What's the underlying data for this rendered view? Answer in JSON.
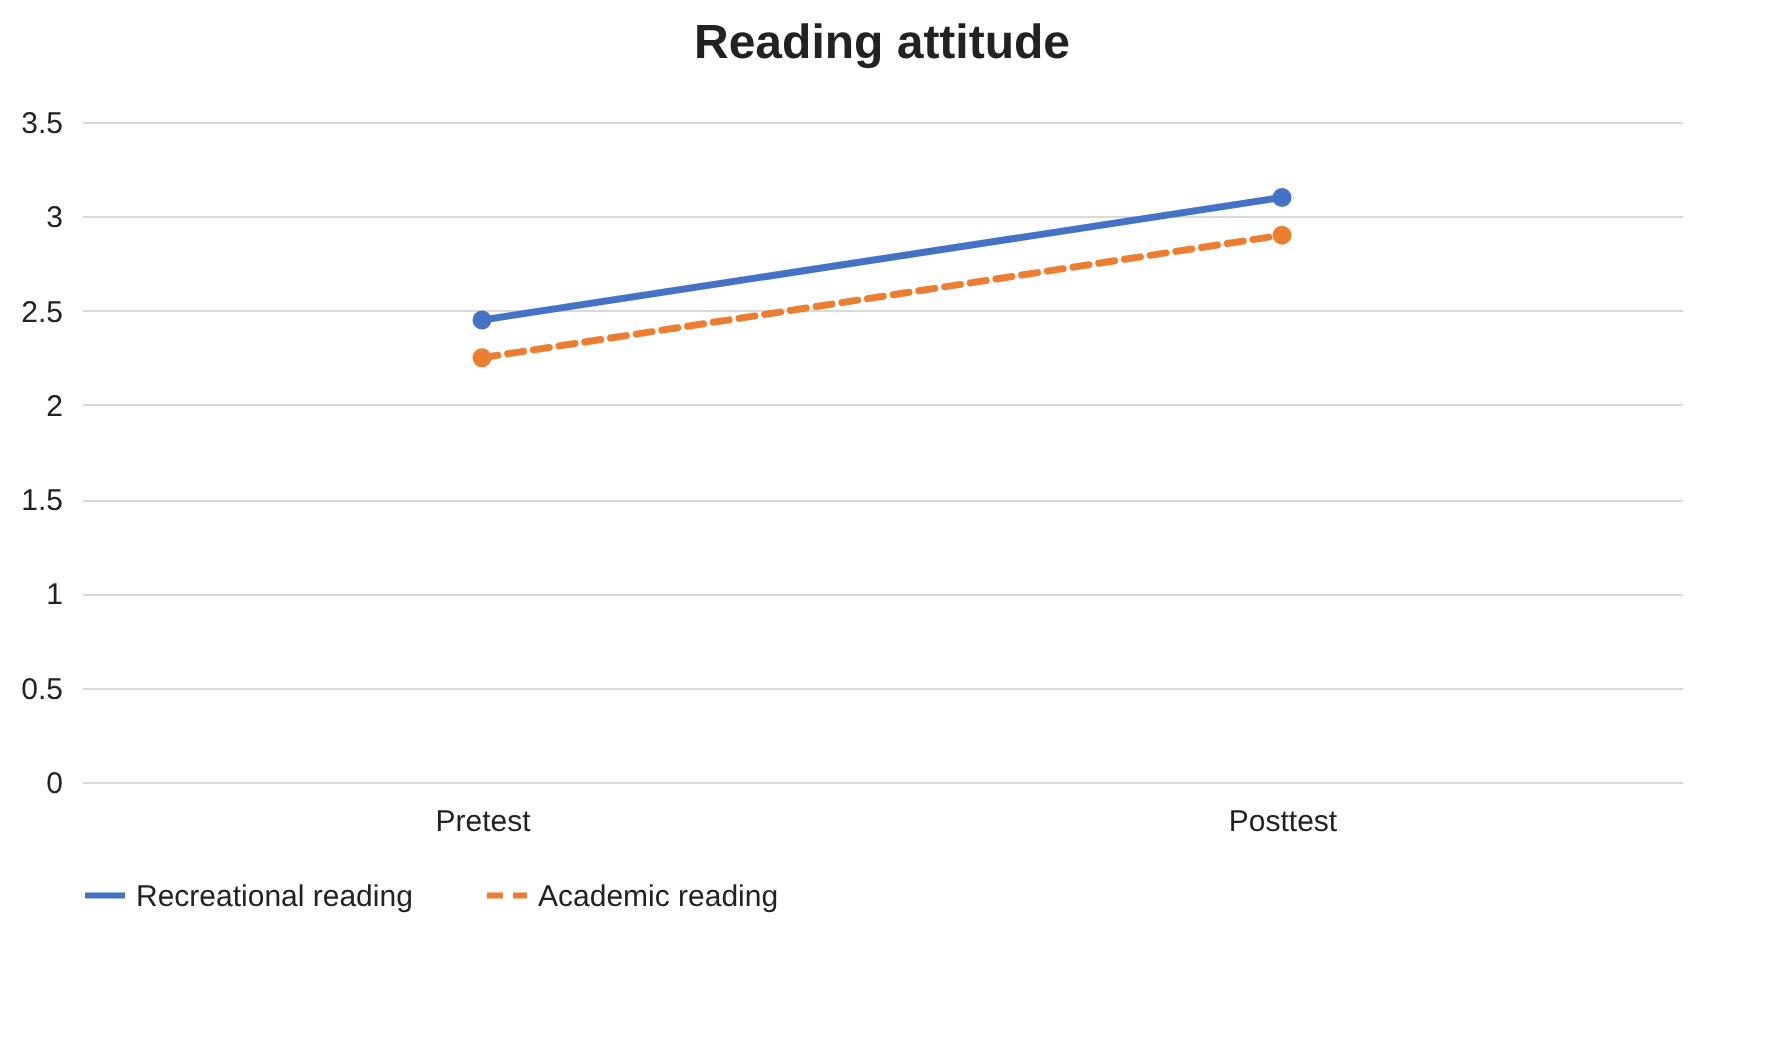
{
  "chart_data": {
    "type": "line",
    "title": "Reading attitude",
    "categories": [
      "Pretest",
      "Posttest"
    ],
    "series": [
      {
        "name": "Recreational reading",
        "color": "#4472c4",
        "values": [
          2.45,
          3.1
        ],
        "line_style": "solid"
      },
      {
        "name": "Academic reading",
        "color": "#ed7d31",
        "values": [
          2.25,
          2.9
        ],
        "line_style": "dashed"
      }
    ],
    "ylim": [
      0,
      3.5
    ],
    "yticks": [
      0,
      0.5,
      1,
      1.5,
      2,
      2.5,
      3,
      3.5
    ],
    "grid": "y",
    "legend": "bottom",
    "marker": "circle"
  }
}
